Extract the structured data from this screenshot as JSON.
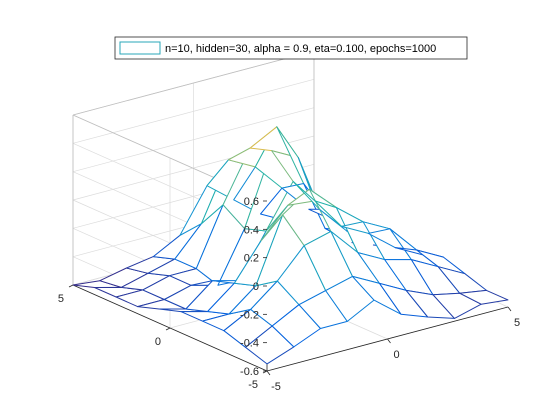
{
  "chart_data": {
    "type": "surface-mesh",
    "legend": {
      "label": "n=10, hidden=30, alpha = 0.9, eta=0.100, epochs=1000",
      "placement": "top",
      "swatch_color": "#2aa7b8"
    },
    "x_axis": {
      "range": [
        -5,
        5
      ],
      "ticks": [
        -5,
        0,
        5
      ],
      "tick_labels": [
        "-5",
        "0",
        "5"
      ]
    },
    "y_axis": {
      "range": [
        -5,
        5
      ],
      "ticks": [
        -5,
        0,
        5
      ],
      "tick_labels": [
        "-5",
        "0",
        "5"
      ]
    },
    "z_axis": {
      "range": [
        -0.6,
        0.6
      ],
      "ticks": [
        -0.6,
        -0.4,
        -0.2,
        0,
        0.2,
        0.4,
        0.6
      ],
      "tick_labels": [
        "-0.6",
        "-0.4",
        "-0.2",
        "0",
        "0.2",
        "0.4",
        "0.6"
      ]
    },
    "grid": true,
    "colormap": "parula",
    "color_range": [
      -0.6,
      0.4
    ],
    "x": [
      -5,
      -3.89,
      -2.78,
      -1.67,
      -0.56,
      0.56,
      1.67,
      2.78,
      3.89,
      5
    ],
    "y": [
      -5,
      -3.89,
      -2.78,
      -1.67,
      -0.56,
      0.56,
      1.67,
      2.78,
      3.89,
      5
    ],
    "z": [
      [
        -0.55,
        -0.48,
        -0.4,
        -0.4,
        -0.3,
        -0.45,
        -0.52,
        -0.58,
        -0.53,
        -0.55
      ],
      [
        -0.5,
        -0.4,
        -0.3,
        -0.25,
        -0.2,
        -0.3,
        -0.4,
        -0.48,
        -0.52,
        -0.55
      ],
      [
        -0.45,
        -0.35,
        -0.2,
        0.0,
        0.05,
        -0.15,
        -0.25,
        -0.3,
        -0.4,
        -0.5
      ],
      [
        -0.45,
        -0.45,
        -0.3,
        0.15,
        0.28,
        0.1,
        -0.05,
        -0.15,
        -0.35,
        -0.45
      ],
      [
        -0.45,
        -0.5,
        -0.35,
        -0.1,
        0.1,
        0.08,
        -0.15,
        -0.25,
        -0.4,
        -0.5
      ],
      [
        -0.5,
        -0.55,
        -0.4,
        -0.45,
        -0.15,
        0.15,
        -0.1,
        -0.3,
        -0.45,
        -0.52
      ],
      [
        -0.55,
        -0.55,
        -0.5,
        -0.55,
        -0.2,
        0.3,
        0.2,
        -0.35,
        -0.5,
        -0.55
      ],
      [
        -0.55,
        -0.55,
        -0.5,
        -0.5,
        -0.1,
        0.25,
        0.35,
        -0.1,
        -0.4,
        -0.5
      ],
      [
        -0.55,
        -0.6,
        -0.55,
        -0.5,
        -0.3,
        0.1,
        0.0,
        -0.2,
        -0.4,
        -0.45
      ],
      [
        -0.6,
        -0.62,
        -0.58,
        -0.55,
        -0.45,
        -0.15,
        -0.3,
        -0.45,
        -0.55,
        -0.62
      ]
    ]
  }
}
